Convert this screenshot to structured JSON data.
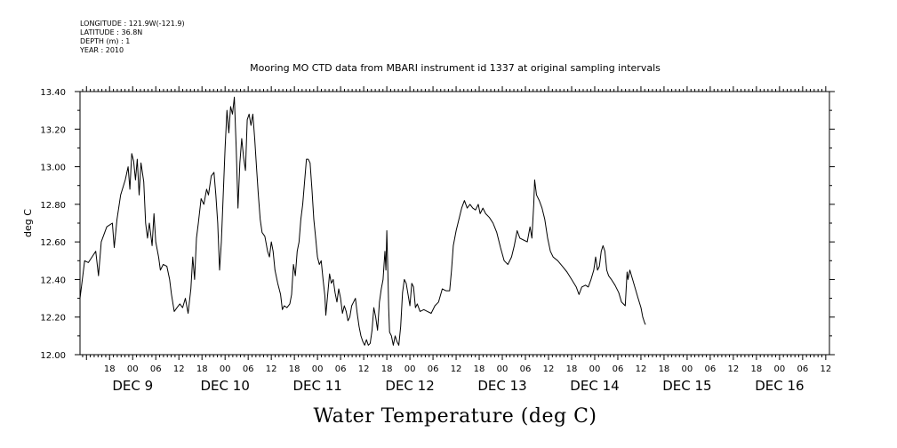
{
  "header": {
    "longitude": "LONGITUDE : 121.9W(-121.9)",
    "latitude": "LATITUDE : 36.8N",
    "depth": "DEPTH (m) : 1",
    "year": "YEAR : 2010"
  },
  "chart_data": {
    "type": "line",
    "title": "Mooring MO CTD data from MBARI instrument id 1337 at original sampling intervals",
    "xlabel": "Water Temperature (deg C)",
    "ylabel": "deg C",
    "ylim": [
      12.0,
      13.4
    ],
    "xlim": [
      -0.57,
      7.54
    ],
    "x_unit": "days from Dec 9 00:00, 2010",
    "y_ticks": [
      "12.00",
      "12.20",
      "12.40",
      "12.60",
      "12.80",
      "13.00",
      "13.20",
      "13.40"
    ],
    "hour_ticks": [
      {
        "x": -0.25,
        "label": "18"
      },
      {
        "x": 0.0,
        "label": "00"
      },
      {
        "x": 0.25,
        "label": "06"
      },
      {
        "x": 0.5,
        "label": "12"
      },
      {
        "x": 0.75,
        "label": "18"
      },
      {
        "x": 1.0,
        "label": "00"
      },
      {
        "x": 1.25,
        "label": "06"
      },
      {
        "x": 1.5,
        "label": "12"
      },
      {
        "x": 1.75,
        "label": "18"
      },
      {
        "x": 2.0,
        "label": "00"
      },
      {
        "x": 2.25,
        "label": "06"
      },
      {
        "x": 2.5,
        "label": "12"
      },
      {
        "x": 2.75,
        "label": "18"
      },
      {
        "x": 3.0,
        "label": "00"
      },
      {
        "x": 3.25,
        "label": "06"
      },
      {
        "x": 3.5,
        "label": "12"
      },
      {
        "x": 3.75,
        "label": "18"
      },
      {
        "x": 4.0,
        "label": "00"
      },
      {
        "x": 4.25,
        "label": "06"
      },
      {
        "x": 4.5,
        "label": "12"
      },
      {
        "x": 4.75,
        "label": "18"
      },
      {
        "x": 5.0,
        "label": "00"
      },
      {
        "x": 5.25,
        "label": "06"
      },
      {
        "x": 5.5,
        "label": "12"
      },
      {
        "x": 5.75,
        "label": "18"
      },
      {
        "x": 6.0,
        "label": "00"
      },
      {
        "x": 6.25,
        "label": "06"
      },
      {
        "x": 6.5,
        "label": "12"
      },
      {
        "x": 6.75,
        "label": "18"
      },
      {
        "x": 7.0,
        "label": "00"
      },
      {
        "x": 7.25,
        "label": "06"
      },
      {
        "x": 7.5,
        "label": "12"
      }
    ],
    "date_labels": [
      {
        "x": 0.0,
        "label": "DEC  9"
      },
      {
        "x": 1.0,
        "label": "DEC 10"
      },
      {
        "x": 2.0,
        "label": "DEC 11"
      },
      {
        "x": 3.0,
        "label": "DEC 12"
      },
      {
        "x": 4.0,
        "label": "DEC 13"
      },
      {
        "x": 5.0,
        "label": "DEC 14"
      },
      {
        "x": 6.0,
        "label": "DEC 15"
      },
      {
        "x": 7.0,
        "label": "DEC 16"
      }
    ],
    "series": [
      {
        "points": [
          [
            -0.57,
            12.3
          ],
          [
            -0.55,
            12.38
          ],
          [
            -0.52,
            12.5
          ],
          [
            -0.48,
            12.49
          ],
          [
            -0.44,
            12.52
          ],
          [
            -0.4,
            12.55
          ],
          [
            -0.37,
            12.42
          ],
          [
            -0.34,
            12.6
          ],
          [
            -0.28,
            12.68
          ],
          [
            -0.22,
            12.7
          ],
          [
            -0.2,
            12.57
          ],
          [
            -0.17,
            12.72
          ],
          [
            -0.13,
            12.85
          ],
          [
            -0.08,
            12.93
          ],
          [
            -0.05,
            13.0
          ],
          [
            -0.03,
            12.88
          ],
          [
            -0.01,
            13.07
          ],
          [
            0.01,
            13.03
          ],
          [
            0.03,
            12.93
          ],
          [
            0.05,
            13.04
          ],
          [
            0.07,
            12.85
          ],
          [
            0.09,
            13.02
          ],
          [
            0.12,
            12.92
          ],
          [
            0.14,
            12.7
          ],
          [
            0.16,
            12.62
          ],
          [
            0.18,
            12.7
          ],
          [
            0.21,
            12.58
          ],
          [
            0.23,
            12.75
          ],
          [
            0.25,
            12.6
          ],
          [
            0.28,
            12.52
          ],
          [
            0.3,
            12.45
          ],
          [
            0.33,
            12.48
          ],
          [
            0.37,
            12.47
          ],
          [
            0.4,
            12.4
          ],
          [
            0.42,
            12.32
          ],
          [
            0.45,
            12.23
          ],
          [
            0.48,
            12.25
          ],
          [
            0.51,
            12.27
          ],
          [
            0.54,
            12.25
          ],
          [
            0.57,
            12.3
          ],
          [
            0.6,
            12.22
          ],
          [
            0.63,
            12.35
          ],
          [
            0.65,
            12.52
          ],
          [
            0.67,
            12.4
          ],
          [
            0.69,
            12.62
          ],
          [
            0.71,
            12.7
          ],
          [
            0.74,
            12.83
          ],
          [
            0.77,
            12.8
          ],
          [
            0.8,
            12.88
          ],
          [
            0.82,
            12.85
          ],
          [
            0.85,
            12.95
          ],
          [
            0.88,
            12.97
          ],
          [
            0.9,
            12.85
          ],
          [
            0.92,
            12.7
          ],
          [
            0.94,
            12.45
          ],
          [
            0.96,
            12.6
          ],
          [
            0.98,
            12.85
          ],
          [
            1.0,
            13.1
          ],
          [
            1.02,
            13.3
          ],
          [
            1.04,
            13.18
          ],
          [
            1.06,
            13.32
          ],
          [
            1.08,
            13.28
          ],
          [
            1.1,
            13.37
          ],
          [
            1.12,
            13.1
          ],
          [
            1.14,
            12.78
          ],
          [
            1.16,
            13.02
          ],
          [
            1.18,
            13.15
          ],
          [
            1.2,
            13.05
          ],
          [
            1.22,
            12.98
          ],
          [
            1.24,
            13.25
          ],
          [
            1.26,
            13.28
          ],
          [
            1.28,
            13.22
          ],
          [
            1.3,
            13.28
          ],
          [
            1.32,
            13.15
          ],
          [
            1.34,
            13.0
          ],
          [
            1.36,
            12.85
          ],
          [
            1.38,
            12.72
          ],
          [
            1.4,
            12.65
          ],
          [
            1.43,
            12.63
          ],
          [
            1.46,
            12.55
          ],
          [
            1.48,
            12.52
          ],
          [
            1.5,
            12.6
          ],
          [
            1.52,
            12.55
          ],
          [
            1.54,
            12.45
          ],
          [
            1.57,
            12.38
          ],
          [
            1.6,
            12.32
          ],
          [
            1.62,
            12.24
          ],
          [
            1.64,
            12.26
          ],
          [
            1.67,
            12.25
          ],
          [
            1.7,
            12.27
          ],
          [
            1.72,
            12.32
          ],
          [
            1.74,
            12.48
          ],
          [
            1.76,
            12.42
          ],
          [
            1.78,
            12.55
          ],
          [
            1.8,
            12.6
          ],
          [
            1.82,
            12.72
          ],
          [
            1.84,
            12.8
          ],
          [
            1.86,
            12.92
          ],
          [
            1.88,
            13.04
          ],
          [
            1.9,
            13.04
          ],
          [
            1.92,
            13.02
          ],
          [
            1.94,
            12.88
          ],
          [
            1.96,
            12.72
          ],
          [
            1.98,
            12.62
          ],
          [
            2.0,
            12.52
          ],
          [
            2.02,
            12.48
          ],
          [
            2.04,
            12.5
          ],
          [
            2.06,
            12.4
          ],
          [
            2.08,
            12.31
          ],
          [
            2.09,
            12.21
          ],
          [
            2.11,
            12.32
          ],
          [
            2.13,
            12.43
          ],
          [
            2.15,
            12.38
          ],
          [
            2.17,
            12.4
          ],
          [
            2.19,
            12.33
          ],
          [
            2.21,
            12.28
          ],
          [
            2.23,
            12.35
          ],
          [
            2.25,
            12.3
          ],
          [
            2.27,
            12.22
          ],
          [
            2.29,
            12.26
          ],
          [
            2.31,
            12.23
          ],
          [
            2.33,
            12.18
          ],
          [
            2.35,
            12.2
          ],
          [
            2.37,
            12.26
          ],
          [
            2.39,
            12.28
          ],
          [
            2.41,
            12.3
          ],
          [
            2.43,
            12.22
          ],
          [
            2.45,
            12.15
          ],
          [
            2.47,
            12.1
          ],
          [
            2.49,
            12.07
          ],
          [
            2.51,
            12.05
          ],
          [
            2.53,
            12.08
          ],
          [
            2.55,
            12.05
          ],
          [
            2.57,
            12.06
          ],
          [
            2.59,
            12.13
          ],
          [
            2.61,
            12.25
          ],
          [
            2.63,
            12.2
          ],
          [
            2.65,
            12.13
          ],
          [
            2.67,
            12.28
          ],
          [
            2.69,
            12.35
          ],
          [
            2.71,
            12.4
          ],
          [
            2.72,
            12.48
          ],
          [
            2.73,
            12.55
          ],
          [
            2.74,
            12.45
          ],
          [
            2.75,
            12.66
          ],
          [
            2.76,
            12.48
          ],
          [
            2.77,
            12.25
          ],
          [
            2.78,
            12.12
          ],
          [
            2.8,
            12.1
          ],
          [
            2.82,
            12.05
          ],
          [
            2.84,
            12.1
          ],
          [
            2.86,
            12.07
          ],
          [
            2.88,
            12.05
          ],
          [
            2.9,
            12.15
          ],
          [
            2.92,
            12.33
          ],
          [
            2.94,
            12.4
          ],
          [
            2.96,
            12.38
          ],
          [
            2.98,
            12.32
          ],
          [
            3.0,
            12.26
          ],
          [
            3.02,
            12.38
          ],
          [
            3.04,
            12.36
          ],
          [
            3.06,
            12.25
          ],
          [
            3.08,
            12.27
          ],
          [
            3.11,
            12.23
          ],
          [
            3.15,
            12.24
          ],
          [
            3.19,
            12.23
          ],
          [
            3.23,
            12.22
          ],
          [
            3.27,
            12.26
          ],
          [
            3.31,
            12.28
          ],
          [
            3.35,
            12.35
          ],
          [
            3.39,
            12.34
          ],
          [
            3.43,
            12.34
          ],
          [
            3.45,
            12.45
          ],
          [
            3.47,
            12.58
          ],
          [
            3.5,
            12.66
          ],
          [
            3.53,
            12.72
          ],
          [
            3.56,
            12.78
          ],
          [
            3.59,
            12.82
          ],
          [
            3.62,
            12.78
          ],
          [
            3.65,
            12.8
          ],
          [
            3.68,
            12.78
          ],
          [
            3.71,
            12.77
          ],
          [
            3.74,
            12.8
          ],
          [
            3.76,
            12.75
          ],
          [
            3.79,
            12.78
          ],
          [
            3.82,
            12.75
          ],
          [
            3.86,
            12.73
          ],
          [
            3.9,
            12.7
          ],
          [
            3.94,
            12.65
          ],
          [
            3.98,
            12.57
          ],
          [
            4.02,
            12.5
          ],
          [
            4.06,
            12.48
          ],
          [
            4.1,
            12.52
          ],
          [
            4.13,
            12.58
          ],
          [
            4.16,
            12.66
          ],
          [
            4.19,
            12.62
          ],
          [
            4.23,
            12.61
          ],
          [
            4.27,
            12.6
          ],
          [
            4.3,
            12.68
          ],
          [
            4.32,
            12.62
          ],
          [
            4.34,
            12.8
          ],
          [
            4.35,
            12.93
          ],
          [
            4.37,
            12.85
          ],
          [
            4.4,
            12.82
          ],
          [
            4.43,
            12.78
          ],
          [
            4.46,
            12.72
          ],
          [
            4.49,
            12.62
          ],
          [
            4.52,
            12.55
          ],
          [
            4.55,
            12.52
          ],
          [
            4.6,
            12.5
          ],
          [
            4.65,
            12.47
          ],
          [
            4.7,
            12.44
          ],
          [
            4.75,
            12.4
          ],
          [
            4.8,
            12.36
          ],
          [
            4.83,
            12.32
          ],
          [
            4.86,
            12.36
          ],
          [
            4.9,
            12.37
          ],
          [
            4.93,
            12.36
          ],
          [
            4.96,
            12.4
          ],
          [
            4.99,
            12.45
          ],
          [
            5.01,
            12.52
          ],
          [
            5.03,
            12.45
          ],
          [
            5.05,
            12.47
          ],
          [
            5.07,
            12.55
          ],
          [
            5.09,
            12.58
          ],
          [
            5.11,
            12.55
          ],
          [
            5.13,
            12.45
          ],
          [
            5.15,
            12.42
          ],
          [
            5.18,
            12.4
          ],
          [
            5.22,
            12.37
          ],
          [
            5.26,
            12.33
          ],
          [
            5.29,
            12.28
          ],
          [
            5.31,
            12.27
          ],
          [
            5.33,
            12.26
          ],
          [
            5.35,
            12.44
          ],
          [
            5.36,
            12.4
          ],
          [
            5.38,
            12.45
          ],
          [
            5.41,
            12.4
          ],
          [
            5.44,
            12.35
          ],
          [
            5.47,
            12.3
          ],
          [
            5.5,
            12.25
          ],
          [
            5.52,
            12.2
          ],
          [
            5.54,
            12.17
          ],
          [
            5.55,
            12.16
          ]
        ]
      }
    ],
    "x_segments": [
      -0.57,
      7.54
    ]
  }
}
